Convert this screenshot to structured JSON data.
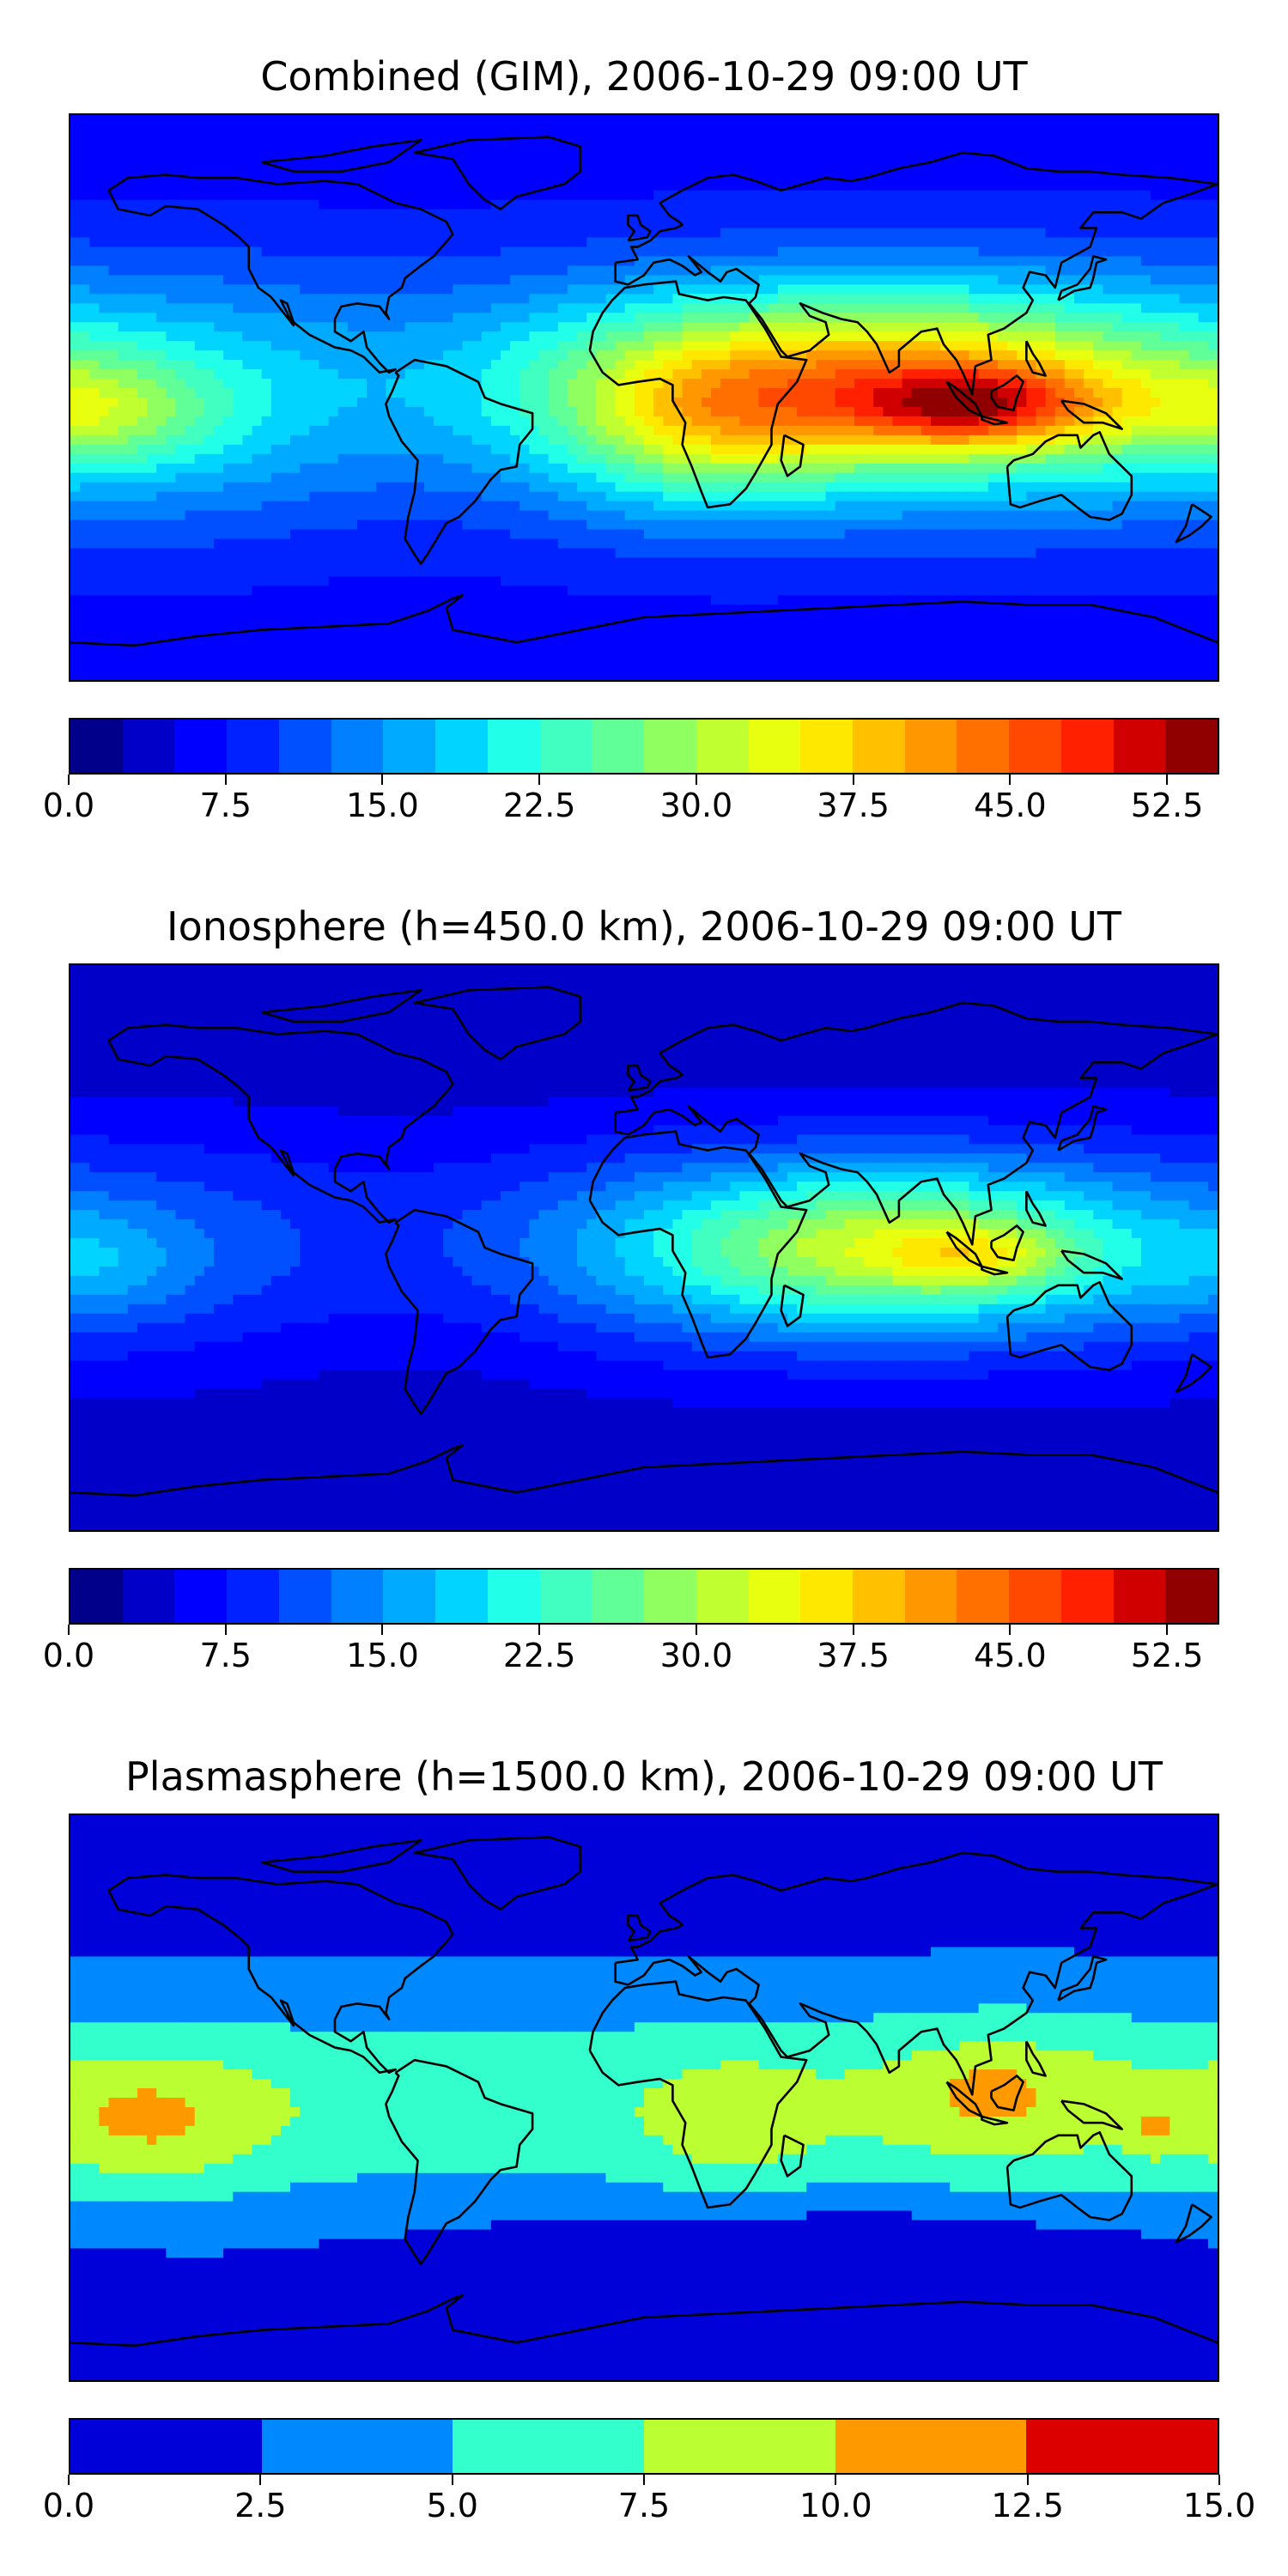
{
  "panels": [
    {
      "id": "combined",
      "title": "Combined (GIM), 2006-10-29 09:00 UT",
      "field": "combined",
      "colorbar": {
        "ticks": [
          "0.0",
          "7.5",
          "15.0",
          "22.5",
          "30.0",
          "37.5",
          "45.0",
          "52.5"
        ],
        "tick_values": [
          0,
          7.5,
          15,
          22.5,
          30,
          37.5,
          45,
          52.5
        ],
        "vmin": 0,
        "vmax": 55,
        "levels": 22
      }
    },
    {
      "id": "ionosphere",
      "title": "Ionosphere  (h=450.0 km), 2006-10-29 09:00 UT",
      "field": "ionosphere",
      "colorbar": {
        "ticks": [
          "0.0",
          "7.5",
          "15.0",
          "22.5",
          "30.0",
          "37.5",
          "45.0",
          "52.5"
        ],
        "tick_values": [
          0,
          7.5,
          15,
          22.5,
          30,
          37.5,
          45,
          52.5
        ],
        "vmin": 0,
        "vmax": 55,
        "levels": 22
      }
    },
    {
      "id": "plasmasphere",
      "title": "Plasmasphere (h=1500.0 km), 2006-10-29 09:00 UT",
      "field": "plasmasphere",
      "colorbar": {
        "ticks": [
          "0.0",
          "2.5",
          "5.0",
          "7.5",
          "10.0",
          "12.5",
          "15.0"
        ],
        "tick_values": [
          0,
          2.5,
          5,
          7.5,
          10,
          12.5,
          15
        ],
        "vmin": 0,
        "vmax": 15,
        "levels": 6
      }
    }
  ],
  "colors": {
    "jet_22": [
      "#00008b",
      "#0000c8",
      "#0000ff",
      "#0022ff",
      "#0050ff",
      "#0080ff",
      "#00aaff",
      "#00d4ff",
      "#22ffe8",
      "#40ffc0",
      "#60ff98",
      "#90ff60",
      "#c0ff30",
      "#e8ff10",
      "#ffe800",
      "#ffc000",
      "#ff9800",
      "#ff7000",
      "#ff4800",
      "#ff2000",
      "#d00000",
      "#900000"
    ],
    "jet_6": [
      "#0000d8",
      "#0088ff",
      "#33ffcc",
      "#bbff33",
      "#ff9900",
      "#dd0000"
    ],
    "coastline": "#000000"
  }
}
